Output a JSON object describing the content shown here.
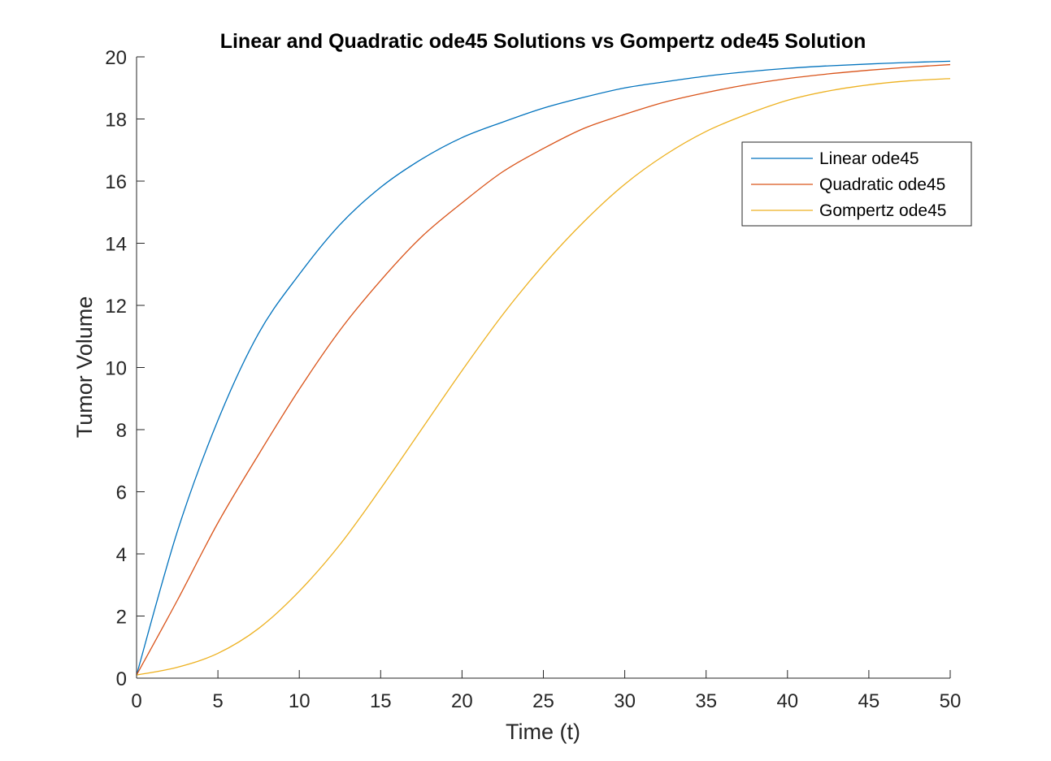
{
  "chart_data": {
    "type": "line",
    "title": "Linear and Quadratic ode45 Solutions vs Gompertz ode45 Solution",
    "xlabel": "Time (t)",
    "ylabel": "Tumor Volume",
    "xlim": [
      0,
      50
    ],
    "ylim": [
      0,
      20
    ],
    "xticks": [
      0,
      5,
      10,
      15,
      20,
      25,
      30,
      35,
      40,
      45,
      50
    ],
    "yticks": [
      0,
      2,
      4,
      6,
      8,
      10,
      12,
      14,
      16,
      18,
      20
    ],
    "grid": false,
    "legend_position": "top-right",
    "x": [
      0,
      2.5,
      5,
      7.5,
      10,
      12.5,
      15,
      17.5,
      20,
      22.5,
      25,
      27.5,
      30,
      32.5,
      35,
      37.5,
      40,
      42.5,
      45,
      47.5,
      50
    ],
    "series": [
      {
        "name": "Linear ode45",
        "color": "#0072BD",
        "values": [
          0.1,
          4.71,
          8.3,
          11.1,
          13.0,
          14.6,
          15.8,
          16.7,
          17.4,
          17.9,
          18.35,
          18.7,
          19.0,
          19.2,
          19.38,
          19.52,
          19.63,
          19.71,
          19.77,
          19.82,
          19.86
        ]
      },
      {
        "name": "Quadratic ode45",
        "color": "#D95319",
        "values": [
          0.1,
          2.5,
          5.0,
          7.2,
          9.3,
          11.2,
          12.8,
          14.2,
          15.3,
          16.3,
          17.05,
          17.7,
          18.15,
          18.55,
          18.85,
          19.1,
          19.3,
          19.45,
          19.57,
          19.67,
          19.75
        ]
      },
      {
        "name": "Gompertz ode45",
        "color": "#EDB120",
        "values": [
          0.1,
          0.35,
          0.8,
          1.6,
          2.8,
          4.3,
          6.1,
          8.0,
          9.9,
          11.7,
          13.3,
          14.7,
          15.9,
          16.85,
          17.6,
          18.15,
          18.6,
          18.9,
          19.1,
          19.23,
          19.3
        ]
      }
    ]
  }
}
